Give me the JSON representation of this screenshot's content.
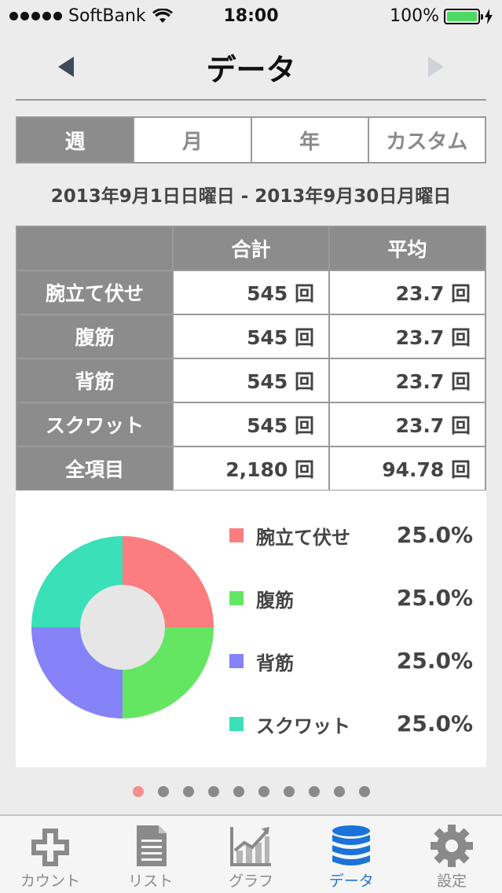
{
  "status_bar": {
    "carrier": "SoftBank",
    "time": "18:00",
    "battery": "100%"
  },
  "nav": {
    "title": "データ",
    "prev_icon": "left-triangle-icon",
    "next_icon": "right-triangle-icon"
  },
  "segments": [
    {
      "label": "週",
      "active": true
    },
    {
      "label": "月",
      "active": false
    },
    {
      "label": "年",
      "active": false
    },
    {
      "label": "カスタム",
      "active": false
    }
  ],
  "date_range": "2013年9月1日日曜日 - 2013年9月30日月曜日",
  "table": {
    "headers": [
      "",
      "合計",
      "平均"
    ],
    "rows": [
      {
        "name": "腕立て伏せ",
        "total": "545 回",
        "avg": "23.7 回"
      },
      {
        "name": "腹筋",
        "total": "545 回",
        "avg": "23.7 回"
      },
      {
        "name": "背筋",
        "total": "545 回",
        "avg": "23.7 回"
      },
      {
        "name": "スクワット",
        "total": "545 回",
        "avg": "23.7 回"
      },
      {
        "name": "全項目",
        "total": "2,180 回",
        "avg": "94.78 回"
      }
    ]
  },
  "chart_data": {
    "type": "pie",
    "categories": [
      "腕立て伏せ",
      "腹筋",
      "背筋",
      "スクワット"
    ],
    "values": [
      25.0,
      25.0,
      25.0,
      25.0
    ],
    "labels": [
      "25.0%",
      "25.0%",
      "25.0%",
      "25.0%"
    ],
    "colors": [
      "#fb7d7f",
      "#65e663",
      "#8583f7",
      "#3ae0b8"
    ],
    "donut": true
  },
  "pager": {
    "count": 10,
    "current": 0
  },
  "tabs": [
    {
      "label": "カウント",
      "icon": "plus-icon",
      "active": false
    },
    {
      "label": "リスト",
      "icon": "document-icon",
      "active": false
    },
    {
      "label": "グラフ",
      "icon": "line-chart-icon",
      "active": false
    },
    {
      "label": "データ",
      "icon": "database-icon",
      "active": true
    },
    {
      "label": "設定",
      "icon": "gear-icon",
      "active": false
    }
  ]
}
